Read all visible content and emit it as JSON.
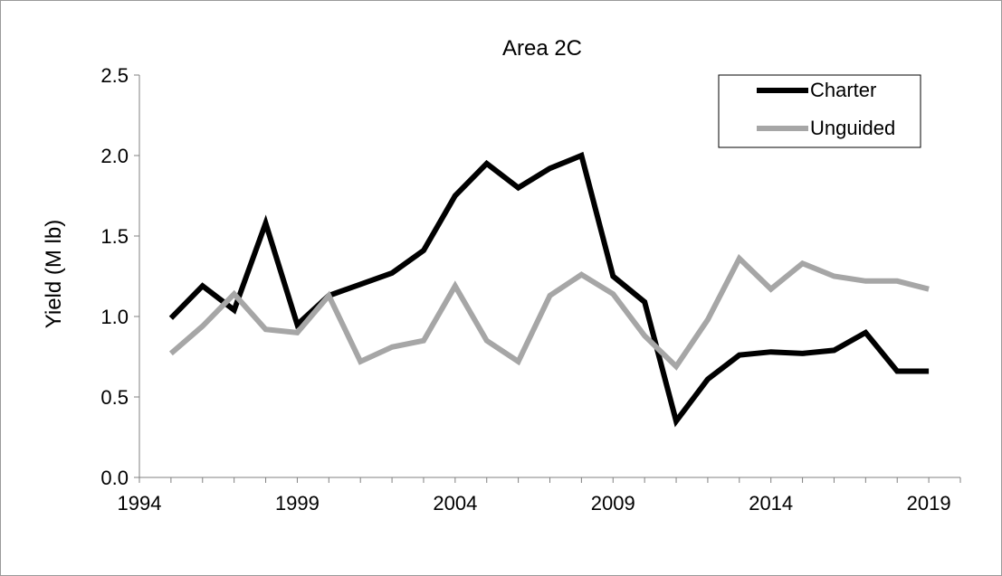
{
  "chart_data": {
    "type": "line",
    "title": "Area 2C",
    "xlabel": "",
    "ylabel": "Yield (M lb)",
    "xlim": [
      1994,
      2020
    ],
    "ylim": [
      0,
      2.5
    ],
    "x_ticks": [
      "1994",
      "1999",
      "2004",
      "2009",
      "2014",
      "2019"
    ],
    "y_ticks": [
      "0.0",
      "0.5",
      "1.0",
      "1.5",
      "2.0",
      "2.5"
    ],
    "grid": false,
    "legend_position": "top-right",
    "x": [
      1995,
      1996,
      1997,
      1998,
      1999,
      2000,
      2001,
      2002,
      2003,
      2004,
      2005,
      2006,
      2007,
      2008,
      2009,
      2010,
      2011,
      2012,
      2013,
      2014,
      2015,
      2016,
      2017,
      2018,
      2019
    ],
    "series": [
      {
        "name": "Charter",
        "color": "#000000",
        "values": [
          0.99,
          1.19,
          1.04,
          1.58,
          0.95,
          1.13,
          1.2,
          1.27,
          1.41,
          1.75,
          1.95,
          1.8,
          1.92,
          2.0,
          1.25,
          1.09,
          0.35,
          0.61,
          0.76,
          0.78,
          0.77,
          0.79,
          0.9,
          0.66,
          0.66
        ]
      },
      {
        "name": "Unguided",
        "color": "#a6a6a6",
        "values": [
          0.77,
          0.94,
          1.14,
          0.92,
          0.9,
          1.13,
          0.72,
          0.81,
          0.85,
          1.19,
          0.85,
          0.72,
          1.13,
          1.26,
          1.14,
          0.88,
          0.69,
          0.98,
          1.36,
          1.17,
          1.33,
          1.25,
          1.22,
          1.22,
          1.17
        ]
      }
    ]
  }
}
